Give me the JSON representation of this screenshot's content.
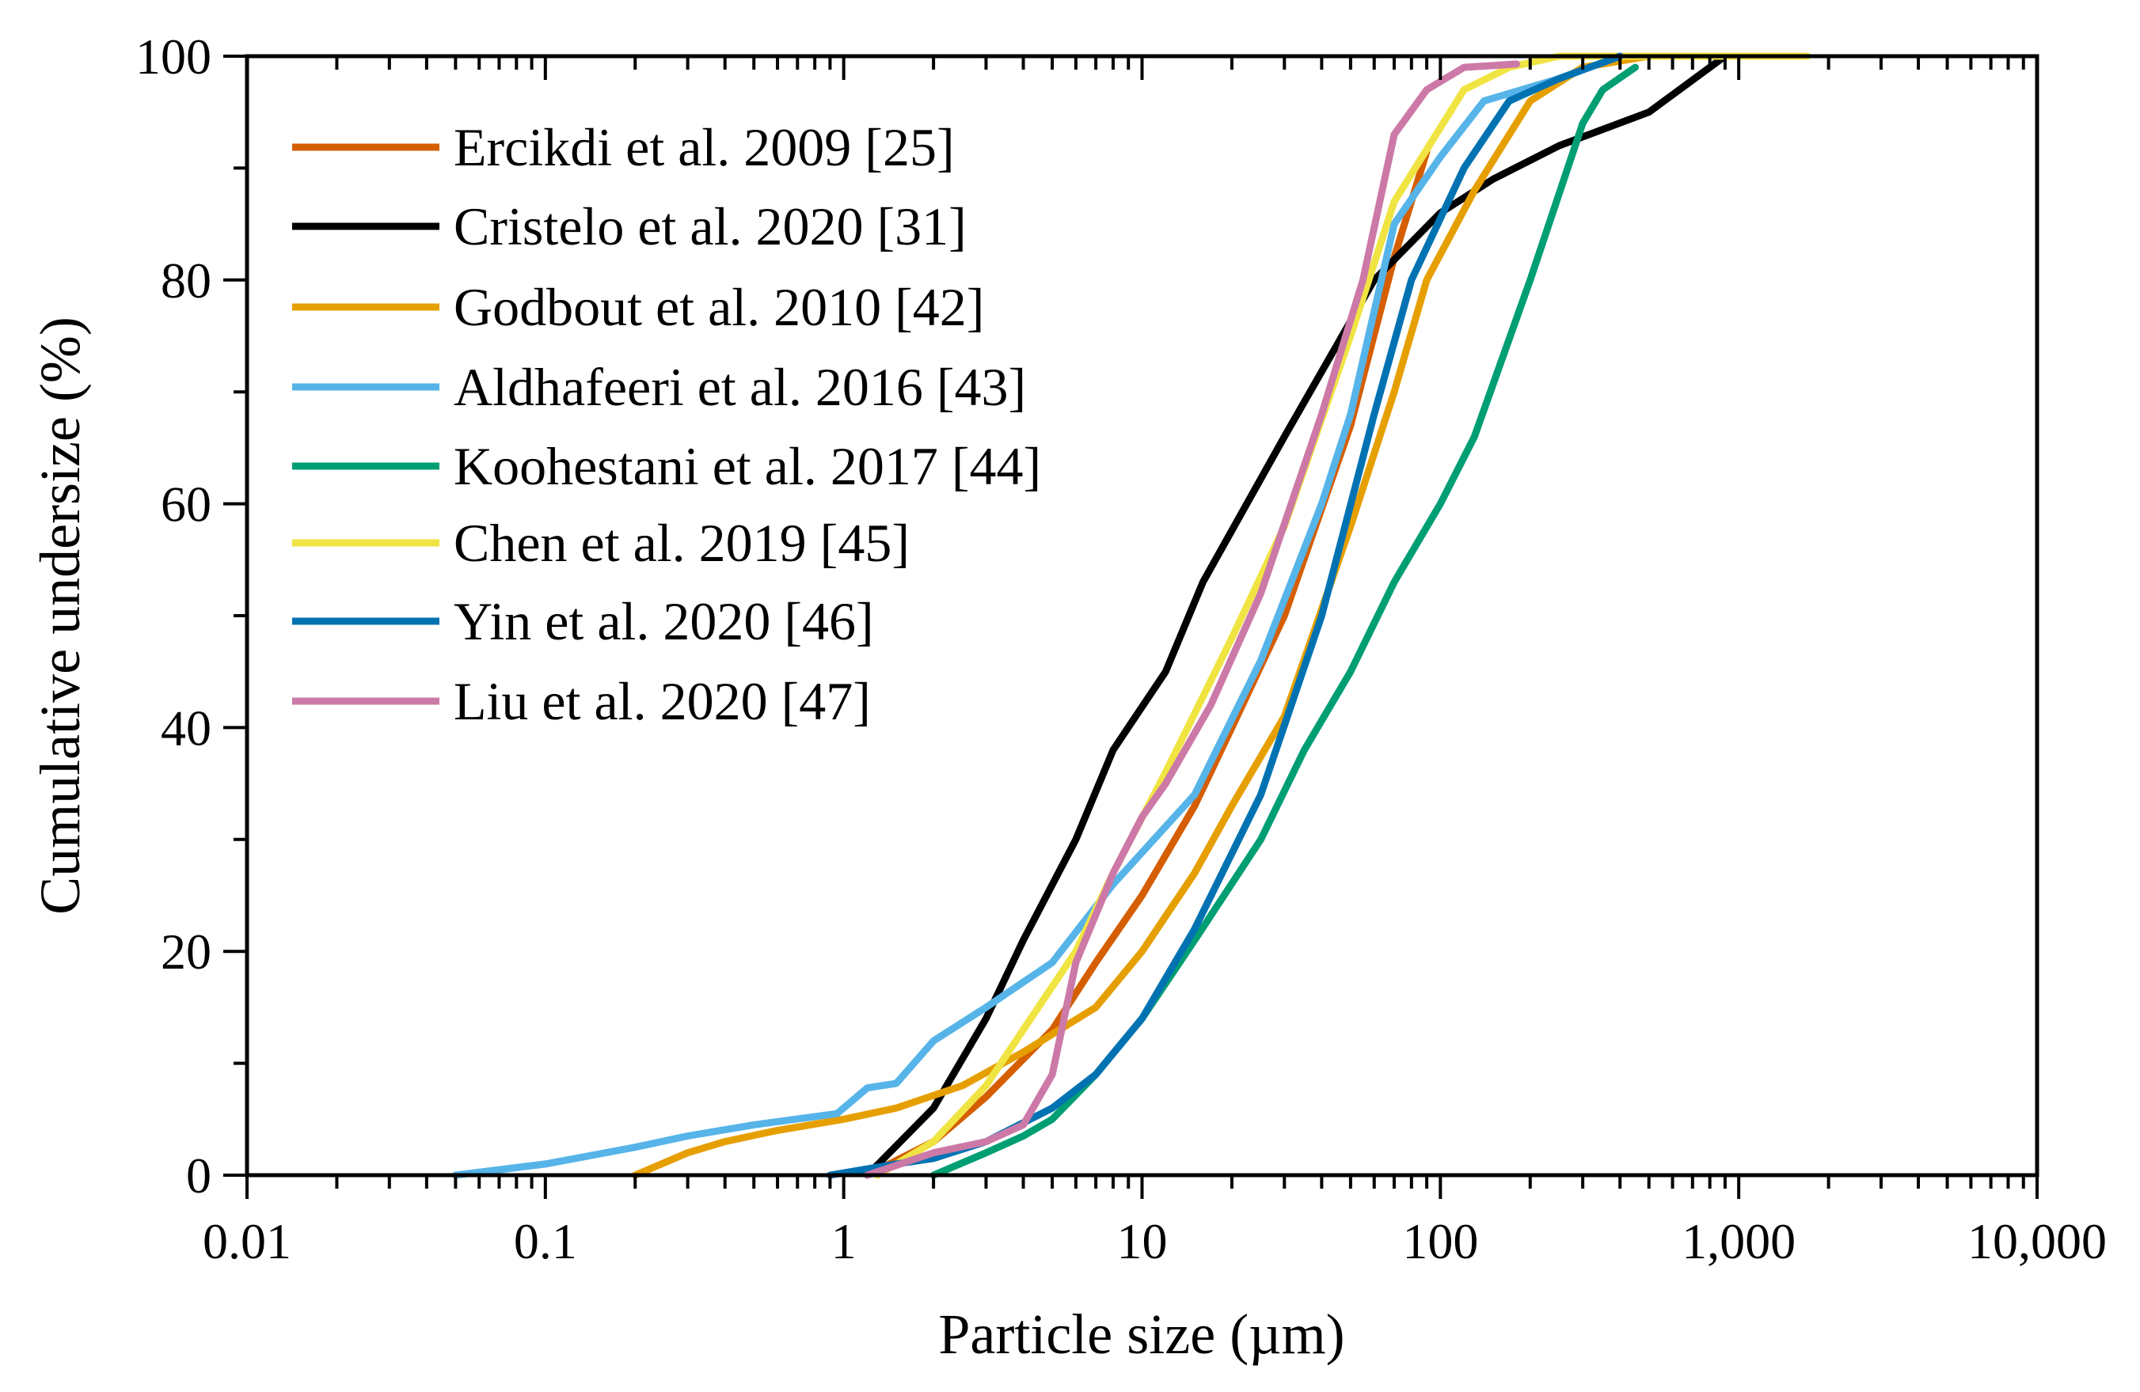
{
  "chart_data": {
    "type": "line",
    "title": "",
    "xlabel": "Particle size (µm)",
    "ylabel": "Cumulative undersize (%)",
    "xscale": "log",
    "xlim": [
      0.01,
      10000
    ],
    "ylim": [
      0,
      100
    ],
    "x_ticks": [
      0.01,
      0.1,
      1,
      10,
      100,
      1000,
      10000
    ],
    "x_tick_labels": [
      "0.01",
      "0.1",
      "1",
      "10",
      "100",
      "1,000",
      "10,000"
    ],
    "y_ticks": [
      0,
      20,
      40,
      60,
      80,
      100
    ],
    "y_tick_labels": [
      "0",
      "20",
      "40",
      "60",
      "80",
      "100"
    ],
    "grid": false,
    "legend_position": "top-left",
    "series": [
      {
        "name": "Ercikdi et al. 2009 [25]",
        "color": "#d55e00",
        "points": [
          [
            1.2,
            0
          ],
          [
            2,
            3
          ],
          [
            3,
            7
          ],
          [
            5,
            13
          ],
          [
            7,
            19
          ],
          [
            10,
            25
          ],
          [
            15,
            33
          ],
          [
            20,
            40
          ],
          [
            30,
            50
          ],
          [
            50,
            67
          ],
          [
            70,
            82
          ],
          [
            90,
            91.5
          ]
        ]
      },
      {
        "name": "Cristelo et al. 2020 [31]",
        "color": "#000000",
        "points": [
          [
            1.2,
            0
          ],
          [
            2,
            6
          ],
          [
            3,
            14
          ],
          [
            4,
            21
          ],
          [
            6,
            30
          ],
          [
            8,
            38
          ],
          [
            12,
            45
          ],
          [
            16,
            53
          ],
          [
            30,
            66
          ],
          [
            60,
            80
          ],
          [
            100,
            86
          ],
          [
            150,
            89
          ],
          [
            250,
            92
          ],
          [
            500,
            95
          ],
          [
            900,
            100
          ]
        ]
      },
      {
        "name": "Godbout et al. 2010 [42]",
        "color": "#e69f00",
        "points": [
          [
            0.2,
            0
          ],
          [
            0.3,
            2
          ],
          [
            0.4,
            3
          ],
          [
            0.6,
            4
          ],
          [
            1,
            5
          ],
          [
            1.5,
            6
          ],
          [
            2.5,
            8
          ],
          [
            4,
            11
          ],
          [
            7,
            15
          ],
          [
            10,
            20
          ],
          [
            15,
            27
          ],
          [
            20,
            33
          ],
          [
            30,
            41
          ],
          [
            50,
            58
          ],
          [
            70,
            70
          ],
          [
            90,
            80
          ],
          [
            130,
            88
          ],
          [
            200,
            96
          ],
          [
            300,
            99
          ],
          [
            500,
            100
          ]
        ]
      },
      {
        "name": "Aldhafeeri et al. 2016 [43]",
        "color": "#56b4e9",
        "points": [
          [
            0.05,
            0
          ],
          [
            0.1,
            1
          ],
          [
            0.2,
            2.5
          ],
          [
            0.3,
            3.5
          ],
          [
            0.5,
            4.5
          ],
          [
            0.95,
            5.5
          ],
          [
            1.2,
            7.8
          ],
          [
            1.5,
            8.2
          ],
          [
            2,
            12
          ],
          [
            3,
            15
          ],
          [
            5,
            19
          ],
          [
            8,
            26
          ],
          [
            15,
            34
          ],
          [
            25,
            46
          ],
          [
            40,
            60
          ],
          [
            50,
            68
          ],
          [
            70,
            85
          ],
          [
            100,
            91
          ],
          [
            140,
            96
          ],
          [
            250,
            98
          ],
          [
            400,
            100
          ]
        ]
      },
      {
        "name": "Koohestani et al. 2017 [44]",
        "color": "#009e73",
        "points": [
          [
            2,
            0
          ],
          [
            3,
            2
          ],
          [
            4,
            3.5
          ],
          [
            5,
            5
          ],
          [
            7,
            9
          ],
          [
            10,
            14
          ],
          [
            15,
            21
          ],
          [
            25,
            30
          ],
          [
            35,
            38
          ],
          [
            50,
            45
          ],
          [
            70,
            53
          ],
          [
            100,
            60
          ],
          [
            130,
            66
          ],
          [
            200,
            80
          ],
          [
            300,
            94
          ],
          [
            350,
            97
          ],
          [
            450,
            99
          ]
        ]
      },
      {
        "name": "Chen et al. 2019 [45]",
        "color": "#f0e442",
        "points": [
          [
            1.3,
            0
          ],
          [
            2,
            3
          ],
          [
            3,
            8
          ],
          [
            4,
            13
          ],
          [
            6,
            20
          ],
          [
            8,
            27
          ],
          [
            12,
            36
          ],
          [
            20,
            48
          ],
          [
            30,
            58
          ],
          [
            50,
            75
          ],
          [
            70,
            87
          ],
          [
            120,
            97
          ],
          [
            170,
            99
          ],
          [
            250,
            100
          ],
          [
            1700,
            100
          ]
        ]
      },
      {
        "name": "Yin et al. 2020 [46]",
        "color": "#0072b2",
        "points": [
          [
            0.9,
            0
          ],
          [
            1.5,
            1
          ],
          [
            2,
            1.5
          ],
          [
            3,
            3
          ],
          [
            5,
            6
          ],
          [
            7,
            9
          ],
          [
            10,
            14
          ],
          [
            15,
            22
          ],
          [
            25,
            34
          ],
          [
            40,
            50
          ],
          [
            60,
            68
          ],
          [
            80,
            80
          ],
          [
            120,
            90
          ],
          [
            170,
            96
          ],
          [
            250,
            98
          ],
          [
            400,
            100
          ]
        ]
      },
      {
        "name": "Liu et al. 2020 [47]",
        "color": "#cc79a7",
        "points": [
          [
            1.2,
            0
          ],
          [
            2,
            2
          ],
          [
            3,
            3
          ],
          [
            4,
            4.5
          ],
          [
            5,
            9
          ],
          [
            6,
            19
          ],
          [
            8,
            27
          ],
          [
            10,
            32
          ],
          [
            12,
            35
          ],
          [
            17,
            42
          ],
          [
            25,
            52
          ],
          [
            40,
            68
          ],
          [
            55,
            80
          ],
          [
            70,
            93
          ],
          [
            90,
            97
          ],
          [
            120,
            99
          ],
          [
            180,
            99.3
          ]
        ]
      }
    ]
  }
}
